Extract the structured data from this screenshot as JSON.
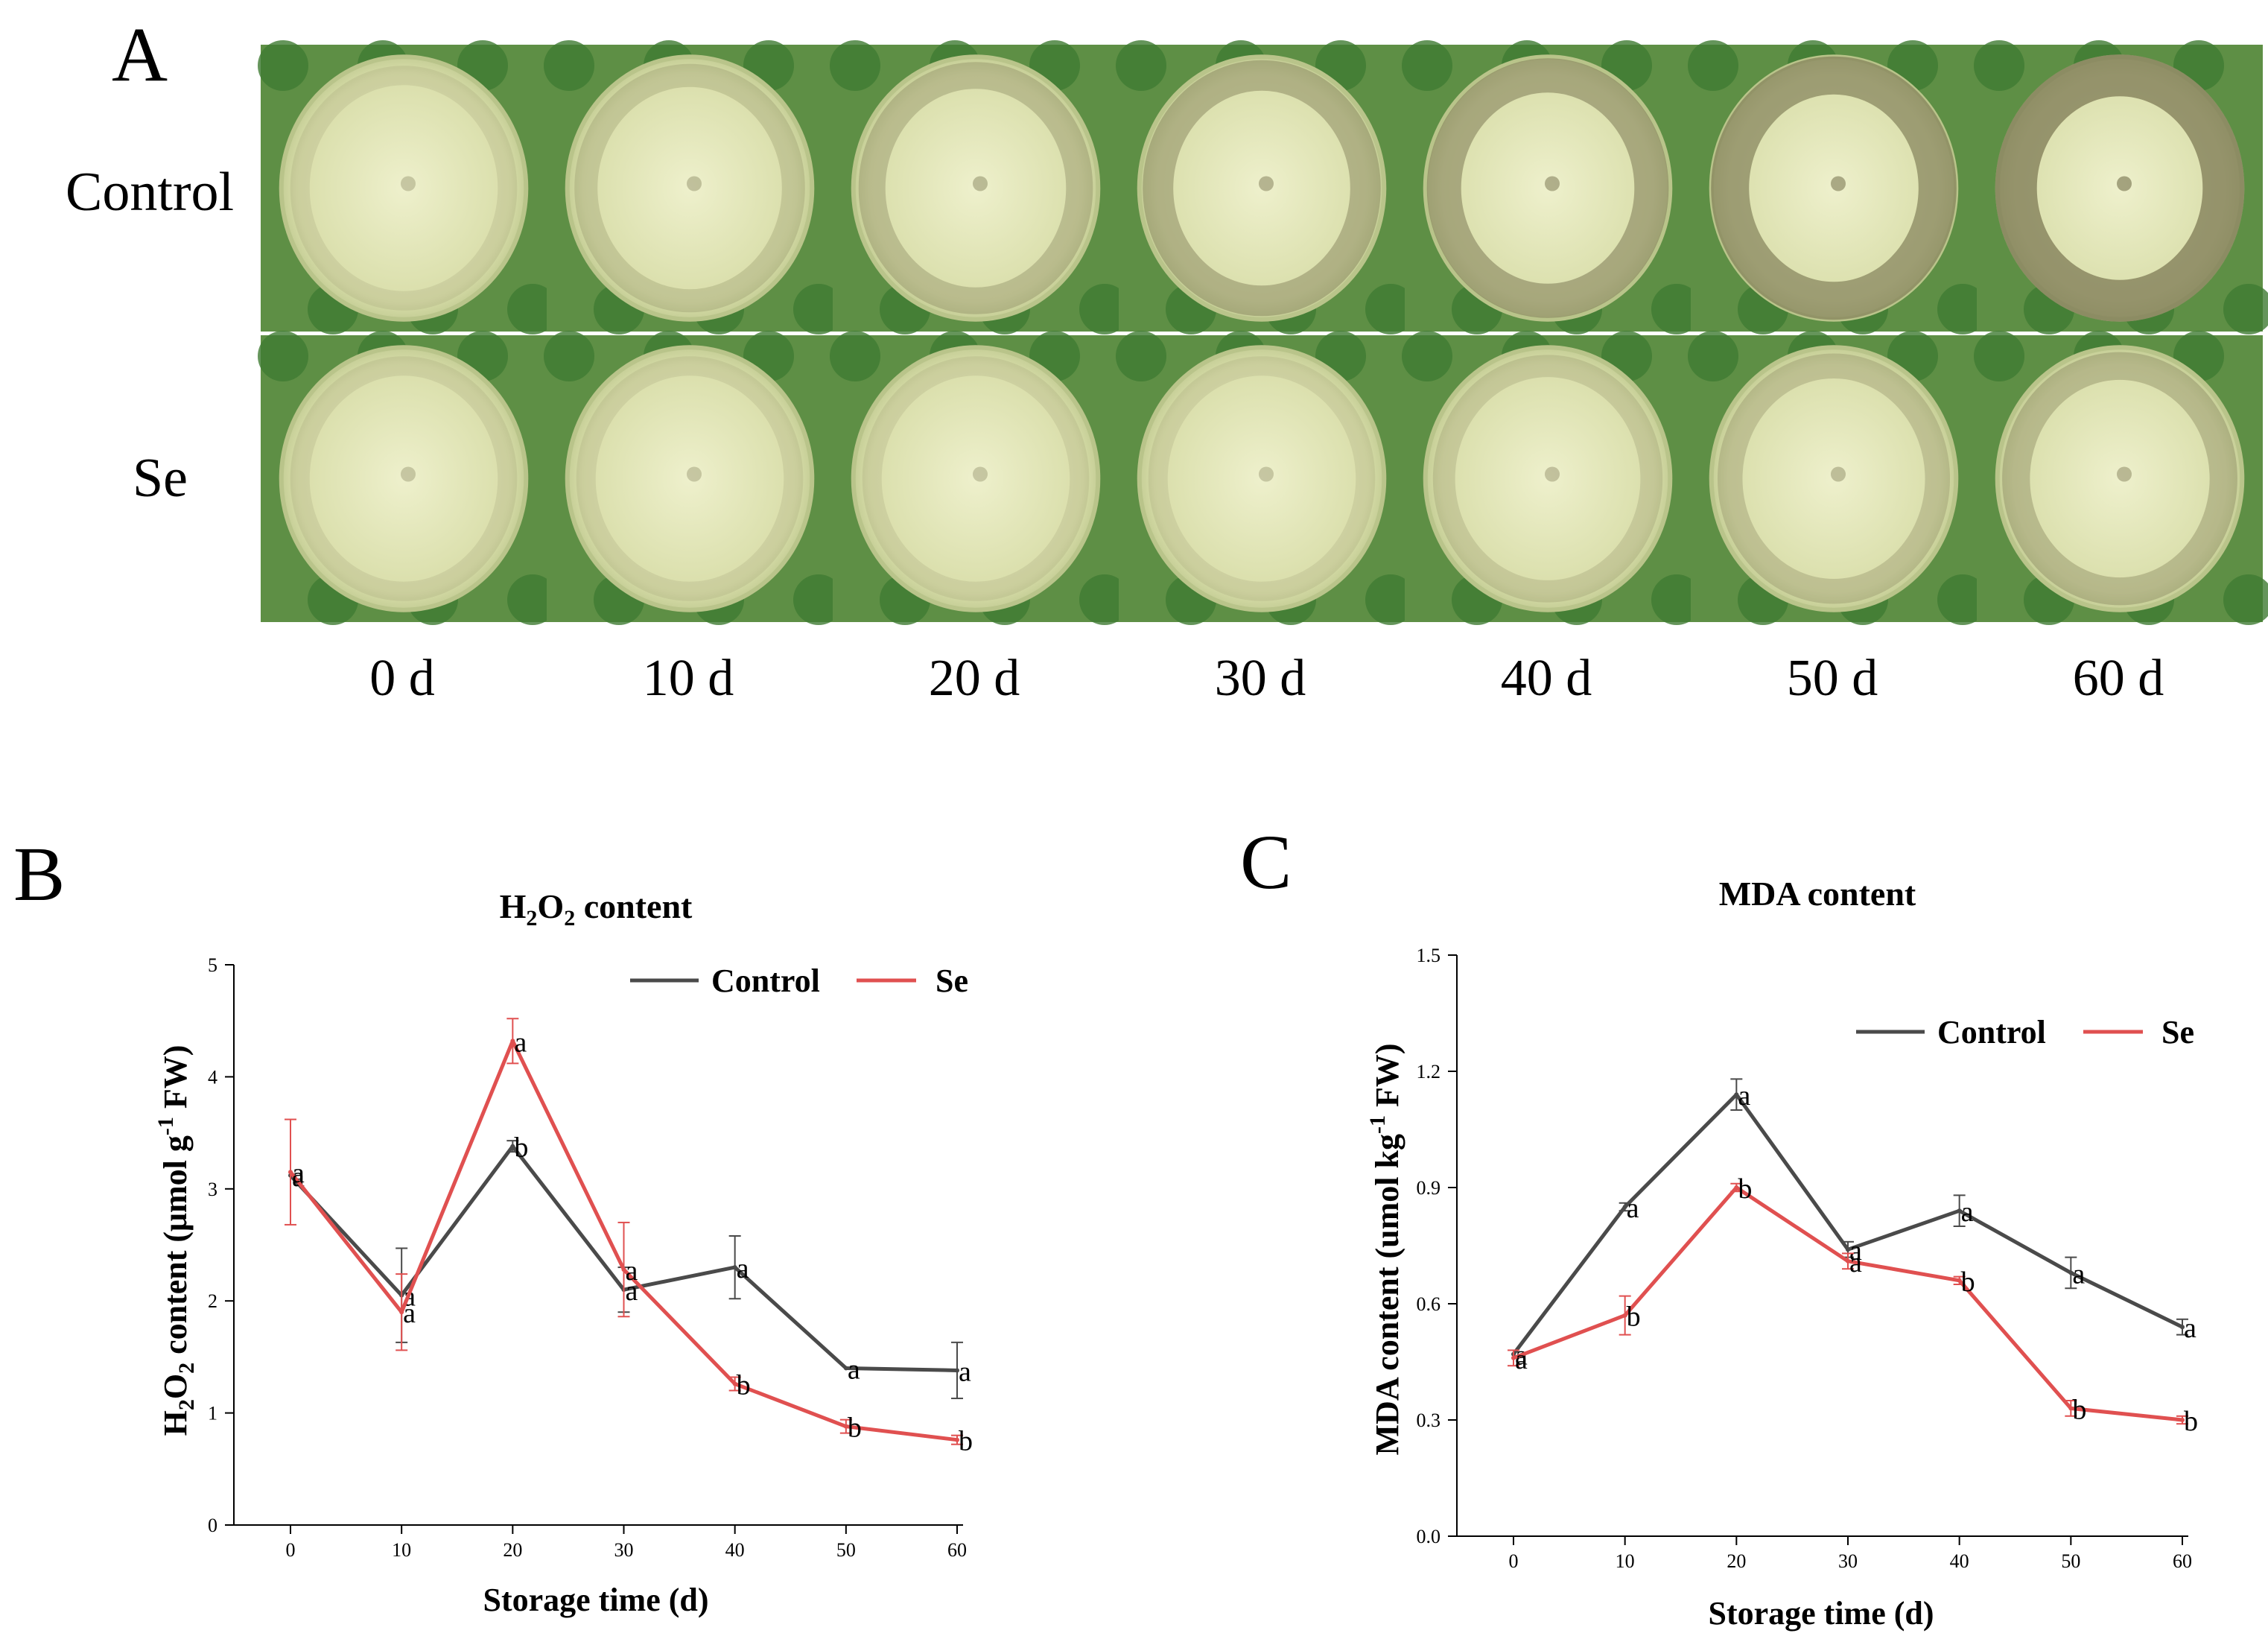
{
  "panel_a": {
    "letter": "A",
    "rows": [
      "Control",
      "Se"
    ],
    "days": [
      "0 d",
      "10 d",
      "20 d",
      "30 d",
      "40 d",
      "50 d",
      "60 d"
    ],
    "photo_colors": {
      "background": "#5e8f45",
      "leaf": "#3f7a32",
      "flesh_light": "#eef0cc",
      "flesh": "#d9deaa",
      "rim": "#b9c48a",
      "dark_spots": "#7d7a55"
    }
  },
  "chart_data": [
    {
      "panel": "B",
      "type": "line",
      "title_main": "H",
      "title_sub1": "2",
      "title_mid": "O",
      "title_sub2": "2",
      "title_rest": " content",
      "ylabel_parts": [
        "H",
        "2",
        "O",
        "2",
        " content (μmol g",
        "-1",
        " FW)"
      ],
      "xlabel": "Storage time (d)",
      "x": [
        0,
        10,
        20,
        30,
        40,
        50,
        60
      ],
      "ylim": [
        0,
        5
      ],
      "yticks": [
        "0",
        "1",
        "2",
        "3",
        "4",
        "5"
      ],
      "yticks_values": [
        0,
        1,
        2,
        3,
        4,
        5
      ],
      "series": [
        {
          "name": "Control",
          "color": "#4a4a4a",
          "values": [
            3.12,
            2.05,
            3.38,
            2.1,
            2.3,
            1.4,
            1.38
          ],
          "errors": [
            0.0,
            0.42,
            0.05,
            0.2,
            0.28,
            0.0,
            0.25
          ],
          "letters": [
            "a",
            "a",
            "b",
            "a",
            "a",
            "a",
            "a"
          ]
        },
        {
          "name": "Se",
          "color": "#e05050",
          "values": [
            3.15,
            1.9,
            4.32,
            2.28,
            1.26,
            0.88,
            0.76
          ],
          "errors": [
            0.47,
            0.34,
            0.2,
            0.42,
            0.06,
            0.06,
            0.04
          ],
          "letters": [
            "a",
            "a",
            "a",
            "a",
            "b",
            "b",
            "b"
          ]
        }
      ],
      "legend": [
        "Control",
        "Se"
      ],
      "legend_position": "top-right"
    },
    {
      "panel": "C",
      "type": "line",
      "title": "MDA content",
      "ylabel_parts": [
        "MDA content (umol kg",
        "-1",
        " FW)"
      ],
      "xlabel": "Storage time (d)",
      "x": [
        0,
        10,
        20,
        30,
        40,
        50,
        60
      ],
      "ylim": [
        0,
        1.5
      ],
      "yticks": [
        "0.0",
        "0.3",
        "0.6",
        "0.9",
        "1.2",
        "1.5"
      ],
      "yticks_values": [
        0,
        0.3,
        0.6,
        0.9,
        1.2,
        1.5
      ],
      "series": [
        {
          "name": "Control",
          "color": "#4a4a4a",
          "values": [
            0.47,
            0.85,
            1.14,
            0.74,
            0.84,
            0.68,
            0.54
          ],
          "errors": [
            0.0,
            0.01,
            0.04,
            0.02,
            0.04,
            0.04,
            0.02
          ],
          "letters": [
            "a",
            "a",
            "a",
            "a",
            "a",
            "a",
            "a"
          ]
        },
        {
          "name": "Se",
          "color": "#e05050",
          "values": [
            0.46,
            0.57,
            0.9,
            0.71,
            0.66,
            0.33,
            0.3
          ],
          "errors": [
            0.02,
            0.05,
            0.01,
            0.02,
            0.01,
            0.02,
            0.01
          ],
          "letters": [
            "a",
            "b",
            "b",
            "a",
            "b",
            "b",
            "b"
          ]
        }
      ],
      "legend": [
        "Control",
        "Se"
      ],
      "legend_position": "top-right"
    }
  ]
}
